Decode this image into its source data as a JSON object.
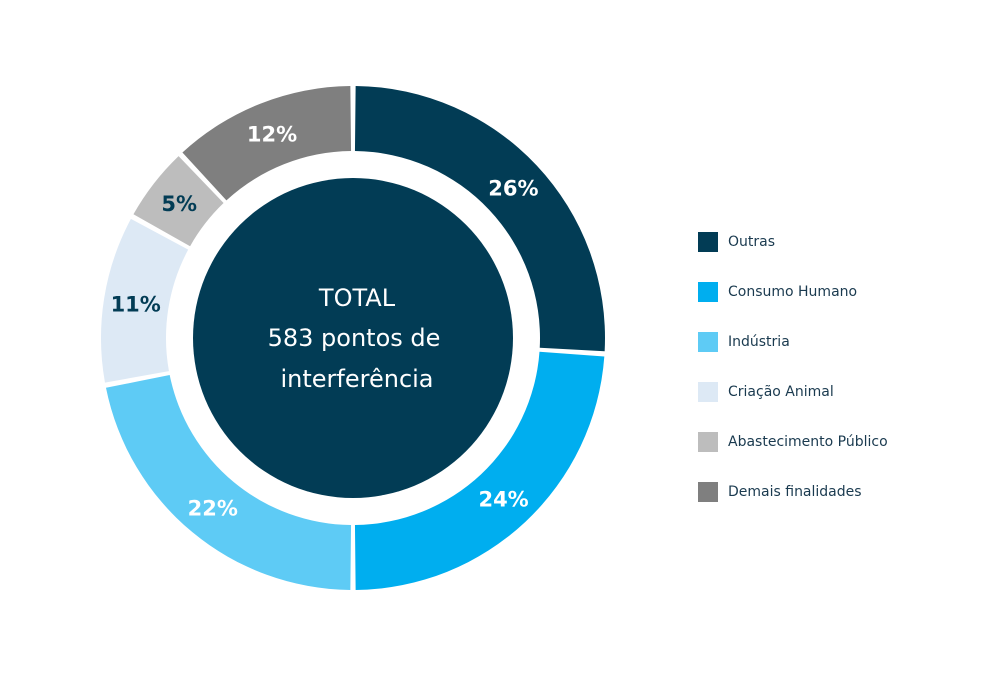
{
  "chart_data": {
    "type": "pie",
    "center_text": [
      "TOTAL",
      "583 pontos de",
      "interferência"
    ],
    "categories": [
      "Outras",
      "Consumo Humano",
      "Indústria",
      "Criação Animal",
      "Abastecimento Público",
      "Demais finalidades"
    ],
    "values": [
      26,
      24,
      22,
      11,
      5,
      12
    ],
    "value_labels": [
      "26%",
      "24%",
      "22%",
      "11%",
      "5%",
      "12%"
    ],
    "colors": [
      "#023c55",
      "#00aeef",
      "#5ecbf5",
      "#dde9f5",
      "#bdbdbd",
      "#7f7f7f"
    ],
    "label_colors": [
      "#ffffff",
      "#ffffff",
      "#ffffff",
      "#023c55",
      "#023c55",
      "#ffffff"
    ],
    "legend_position": "right"
  }
}
